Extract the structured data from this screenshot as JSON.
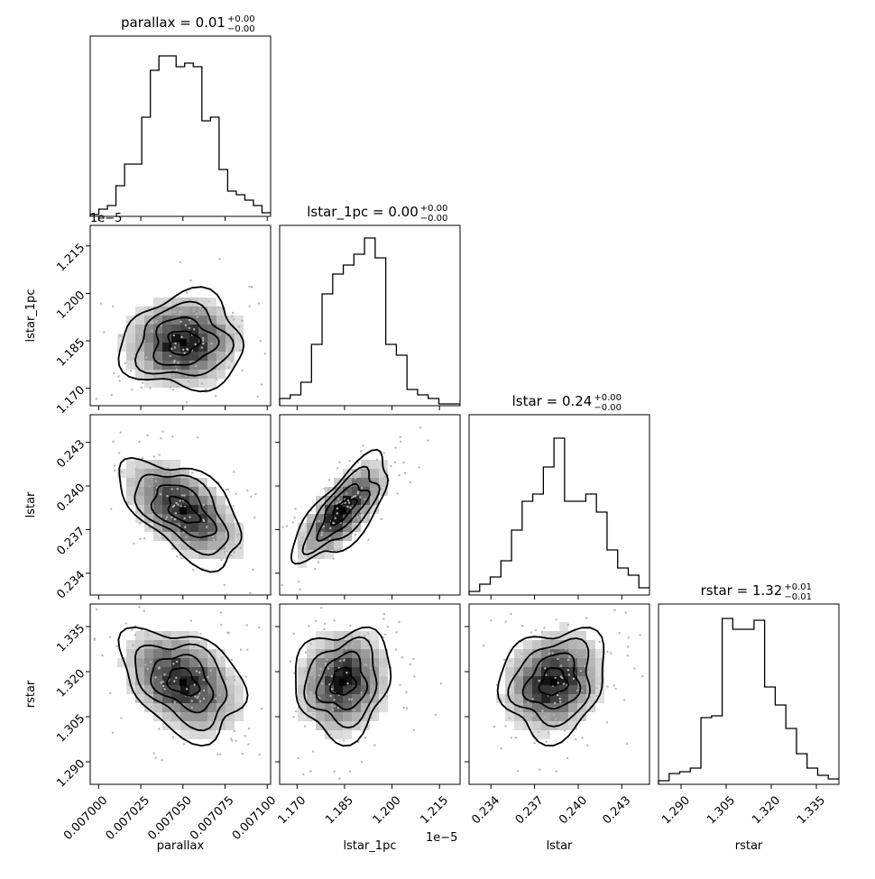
{
  "chart_data": {
    "type": "corner",
    "parameters": [
      {
        "name": "parallax",
        "axis_label": "parallax",
        "title_main": "parallax = 0.01",
        "title_plus": "+0.00",
        "title_minus": "−0.00",
        "range": [
          0.006995,
          0.007102
        ],
        "ticks": [
          0.007,
          0.007025,
          0.00705,
          0.007075,
          0.0071
        ],
        "tick_labels": [
          "0.007000",
          "0.007025",
          "0.007050",
          "0.007075",
          "0.007100"
        ],
        "center": 0.00705,
        "sigma": 1.8e-05,
        "hist": [
          0.01,
          0.04,
          0.06,
          0.17,
          0.29,
          0.29,
          0.55,
          0.81,
          0.89,
          0.89,
          0.83,
          0.85,
          0.83,
          0.53,
          0.55,
          0.26,
          0.14,
          0.12,
          0.09,
          0.06,
          0.02
        ]
      },
      {
        "name": "lstar_1pc",
        "axis_label": "lstar_1pc",
        "title_main": "lstar_1pc = 0.00",
        "title_plus": "+0.00",
        "title_minus": "−0.00",
        "offset": "1e−5",
        "range": [
          1.1645,
          1.2215
        ],
        "ticks": [
          1.17,
          1.185,
          1.2,
          1.215
        ],
        "tick_labels": [
          "1.170",
          "1.185",
          "1.200",
          "1.215"
        ],
        "center": 1.1845,
        "sigma": 0.0075,
        "hist": [
          0.04,
          0.06,
          0.13,
          0.34,
          0.62,
          0.73,
          0.78,
          0.84,
          0.93,
          0.82,
          0.34,
          0.28,
          0.09,
          0.06,
          0.04,
          0.01,
          0.01
        ]
      },
      {
        "name": "lstar",
        "axis_label": "lstar",
        "title_main": "lstar = 0.24",
        "title_plus": "+0.00",
        "title_minus": "−0.00",
        "range": [
          0.2325,
          0.2449
        ],
        "ticks": [
          0.234,
          0.237,
          0.24,
          0.243
        ],
        "tick_labels": [
          "0.234",
          "0.237",
          "0.240",
          "0.243"
        ],
        "center": 0.2383,
        "sigma": 0.0018,
        "hist": [
          0.02,
          0.06,
          0.1,
          0.19,
          0.36,
          0.52,
          0.56,
          0.71,
          0.87,
          0.52,
          0.52,
          0.56,
          0.46,
          0.25,
          0.15,
          0.11,
          0.04
        ]
      },
      {
        "name": "rstar",
        "axis_label": "rstar",
        "title_main": "rstar = 1.32",
        "title_plus": "+0.01",
        "title_minus": "−0.01",
        "range": [
          1.2825,
          1.3425
        ],
        "ticks": [
          1.29,
          1.305,
          1.32,
          1.335
        ],
        "tick_labels": [
          "1.290",
          "1.305",
          "1.320",
          "1.335"
        ],
        "center": 1.3165,
        "sigma": 0.009,
        "hist": [
          0.02,
          0.06,
          0.07,
          0.09,
          0.37,
          0.38,
          0.92,
          0.86,
          0.86,
          0.91,
          0.54,
          0.44,
          0.31,
          0.17,
          0.09,
          0.05,
          0.03
        ]
      }
    ],
    "correlations": {
      "1-0": 0.05,
      "2-0": -0.55,
      "2-1": 0.72,
      "3-0": -0.35,
      "3-1": 0.1,
      "3-2": 0.15
    },
    "contour_levels": [
      0.5,
      1.0,
      1.5,
      2.0
    ],
    "grid": false,
    "legend": "none"
  }
}
